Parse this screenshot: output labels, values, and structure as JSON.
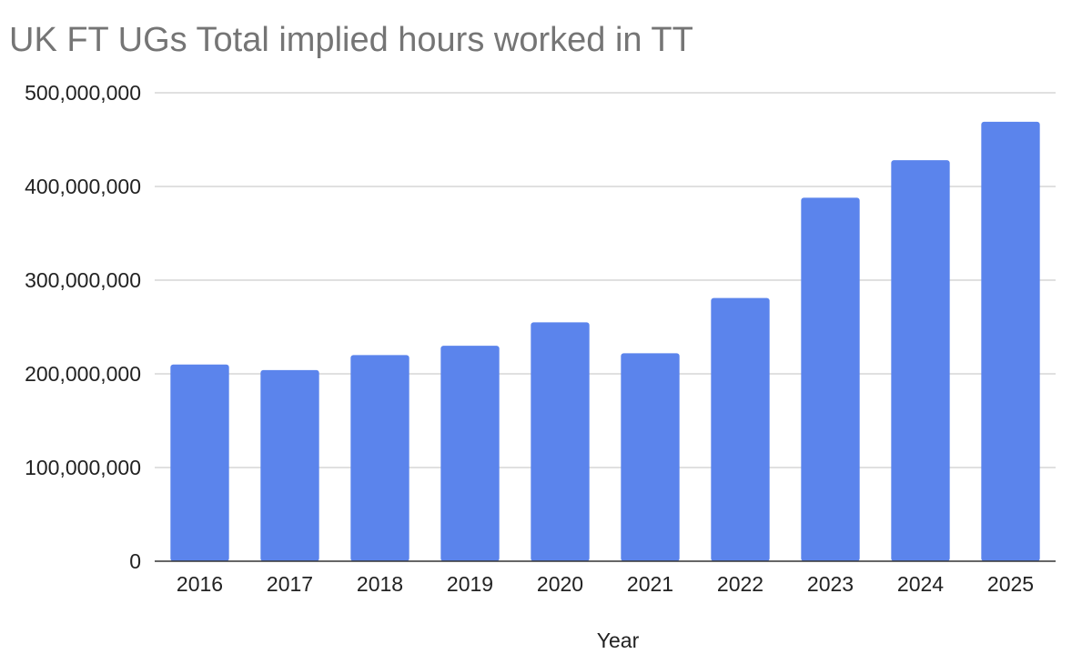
{
  "chart_data": {
    "type": "bar",
    "title": "UK FT UGs Total implied hours worked in TT",
    "xlabel": "Year",
    "ylabel": "",
    "categories": [
      "2016",
      "2017",
      "2018",
      "2019",
      "2020",
      "2021",
      "2022",
      "2023",
      "2024",
      "2025"
    ],
    "values": [
      210000000,
      204000000,
      220000000,
      230000000,
      255000000,
      222000000,
      281000000,
      388000000,
      428000000,
      469000000
    ],
    "ylim": [
      0,
      500000000
    ],
    "yticks": [
      0,
      100000000,
      200000000,
      300000000,
      400000000,
      500000000
    ],
    "ytick_labels": [
      "0",
      "100,000,000",
      "200,000,000",
      "300,000,000",
      "400,000,000",
      "500,000,000"
    ],
    "grid": true,
    "legend": "none",
    "colors": {
      "bar": "#5b84ec",
      "grid": "#d6d6d6",
      "axis": "#333333",
      "title": "#757575",
      "text": "#222222"
    }
  }
}
